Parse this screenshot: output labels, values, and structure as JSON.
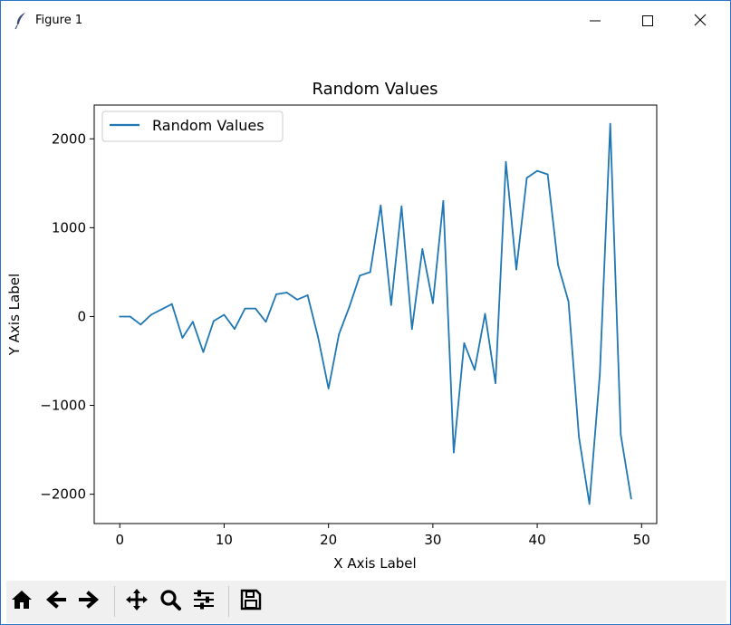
{
  "window": {
    "title": "Figure 1",
    "minimize_icon": "minimize-icon",
    "maximize_icon": "maximize-icon",
    "close_icon": "close-icon"
  },
  "toolbar": {
    "items": [
      {
        "name": "home-button",
        "icon": "home-icon"
      },
      {
        "name": "back-button",
        "icon": "arrow-left-icon"
      },
      {
        "name": "forward-button",
        "icon": "arrow-right-icon"
      },
      {
        "name": "pan-button",
        "icon": "move-icon"
      },
      {
        "name": "zoom-button",
        "icon": "magnifier-icon"
      },
      {
        "name": "configure-subplots-button",
        "icon": "sliders-icon"
      },
      {
        "name": "save-button",
        "icon": "floppy-disk-icon"
      }
    ]
  },
  "chart_data": {
    "type": "line",
    "title": "Random Values",
    "xlabel": "X Axis Label",
    "ylabel": "Y Axis Label",
    "xlim": [
      -2.45,
      51.45
    ],
    "ylim": [
      -2330,
      2380
    ],
    "xticks": [
      0,
      10,
      20,
      30,
      40,
      50
    ],
    "xtick_labels": [
      "0",
      "10",
      "20",
      "30",
      "40",
      "50"
    ],
    "yticks": [
      -2000,
      -1000,
      0,
      1000,
      2000
    ],
    "ytick_labels": [
      "−2000",
      "−1000",
      "0",
      "1000",
      "2000"
    ],
    "grid": false,
    "legend": {
      "position": "upper-left"
    },
    "line_color": "#1f77b4",
    "series": [
      {
        "name": "Random Values",
        "x": [
          0,
          1,
          2,
          3,
          4,
          5,
          6,
          7,
          8,
          9,
          10,
          11,
          12,
          13,
          14,
          15,
          16,
          17,
          18,
          19,
          20,
          21,
          22,
          23,
          24,
          25,
          26,
          27,
          28,
          29,
          30,
          31,
          32,
          33,
          34,
          35,
          36,
          37,
          38,
          39,
          40,
          41,
          42,
          43,
          44,
          45,
          46,
          47,
          48,
          49
        ],
        "values": [
          0,
          0,
          -90,
          20,
          80,
          140,
          -240,
          -60,
          -400,
          -50,
          20,
          -140,
          90,
          90,
          -60,
          250,
          270,
          190,
          240,
          -230,
          -810,
          -200,
          110,
          460,
          500,
          1250,
          130,
          1240,
          -140,
          760,
          150,
          1300,
          -1530,
          -300,
          -600,
          30,
          -750,
          1740,
          530,
          1560,
          1640,
          1600,
          580,
          170,
          -1360,
          -2110,
          -650,
          2170,
          -1330,
          -2050
        ]
      }
    ]
  }
}
